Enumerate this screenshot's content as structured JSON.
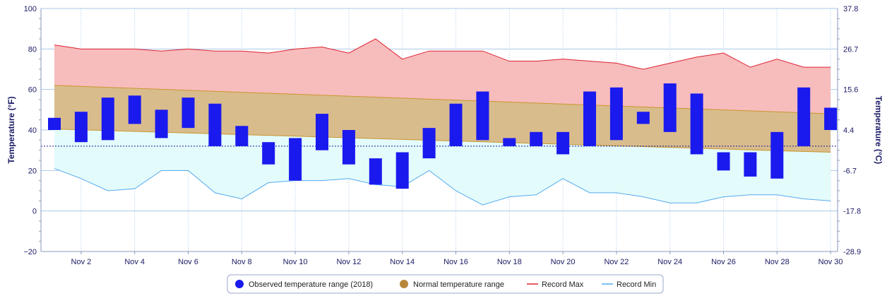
{
  "chart_data": {
    "type": "bar",
    "title": "",
    "xlabel": "",
    "ylabel_left": "Temperature (°F)",
    "ylabel_right": "Temperature (°C)",
    "ylim": [
      -20,
      100
    ],
    "yticks_left": [
      "100",
      "80",
      "60",
      "40",
      "20",
      "0",
      "−20"
    ],
    "yticks_right": [
      "37.8",
      "26.7",
      "15.6",
      "4.4",
      "-6.7",
      "-17.8",
      "-28.9"
    ],
    "x_tick_labels": [
      "Nov 2",
      "Nov 4",
      "Nov 6",
      "Nov 8",
      "Nov 10",
      "Nov 12",
      "Nov 14",
      "Nov 16",
      "Nov 18",
      "Nov 20",
      "Nov 22",
      "Nov 24",
      "Nov 26",
      "Nov 28",
      "Nov 30"
    ],
    "days": [
      1,
      2,
      3,
      4,
      5,
      6,
      7,
      8,
      9,
      10,
      11,
      12,
      13,
      14,
      15,
      16,
      17,
      18,
      19,
      20,
      21,
      22,
      23,
      24,
      25,
      26,
      27,
      28,
      29,
      30
    ],
    "freezing_line": 32,
    "grid": true,
    "legend_position": "bottom",
    "series": [
      {
        "name": "Observed temperature range (2018)",
        "kind": "floating-bar",
        "low": [
          40,
          34,
          35,
          43,
          36,
          41,
          32,
          32,
          23,
          15,
          30,
          23,
          13,
          11,
          26,
          32,
          35,
          32,
          32,
          28,
          32,
          35,
          43,
          39,
          28,
          20,
          17,
          16,
          32,
          40
        ],
        "high": [
          46,
          49,
          56,
          57,
          50,
          56,
          53,
          42,
          34,
          36,
          48,
          40,
          26,
          29,
          41,
          53,
          59,
          36,
          39,
          39,
          59,
          61,
          49,
          63,
          58,
          29,
          29,
          39,
          61,
          51
        ]
      },
      {
        "name": "Normal temperature range",
        "kind": "band",
        "low": [
          40.5,
          29
        ],
        "high": [
          62,
          48
        ]
      },
      {
        "name": "Record Max",
        "kind": "line",
        "values": [
          82,
          80,
          80,
          80,
          79,
          80,
          79,
          79,
          78,
          80,
          81,
          78,
          85,
          75,
          79,
          79,
          79,
          74,
          74,
          75,
          74,
          73,
          70,
          73,
          76,
          78,
          71,
          75,
          71,
          71
        ]
      },
      {
        "name": "Record Min",
        "kind": "line",
        "values": [
          21,
          16,
          10,
          11,
          20,
          20,
          9,
          6,
          14,
          15,
          15,
          16,
          13,
          12,
          20,
          10,
          3,
          7,
          8,
          16,
          9,
          9,
          7,
          4,
          4,
          7,
          8,
          8,
          6,
          5
        ]
      }
    ]
  },
  "colors": {
    "observed": "#1a1aee",
    "normal_fill": "#d9bc8c",
    "normal_legend": "#b8863b",
    "normal_line": "#c9962e",
    "record_max": "#dd2233",
    "record_max_fill": "#f7bcbc",
    "record_min": "#55aaee",
    "record_min_fill": "#e3fbfb",
    "grid": "#a9c9e8",
    "freezing": "#1a1a99"
  }
}
